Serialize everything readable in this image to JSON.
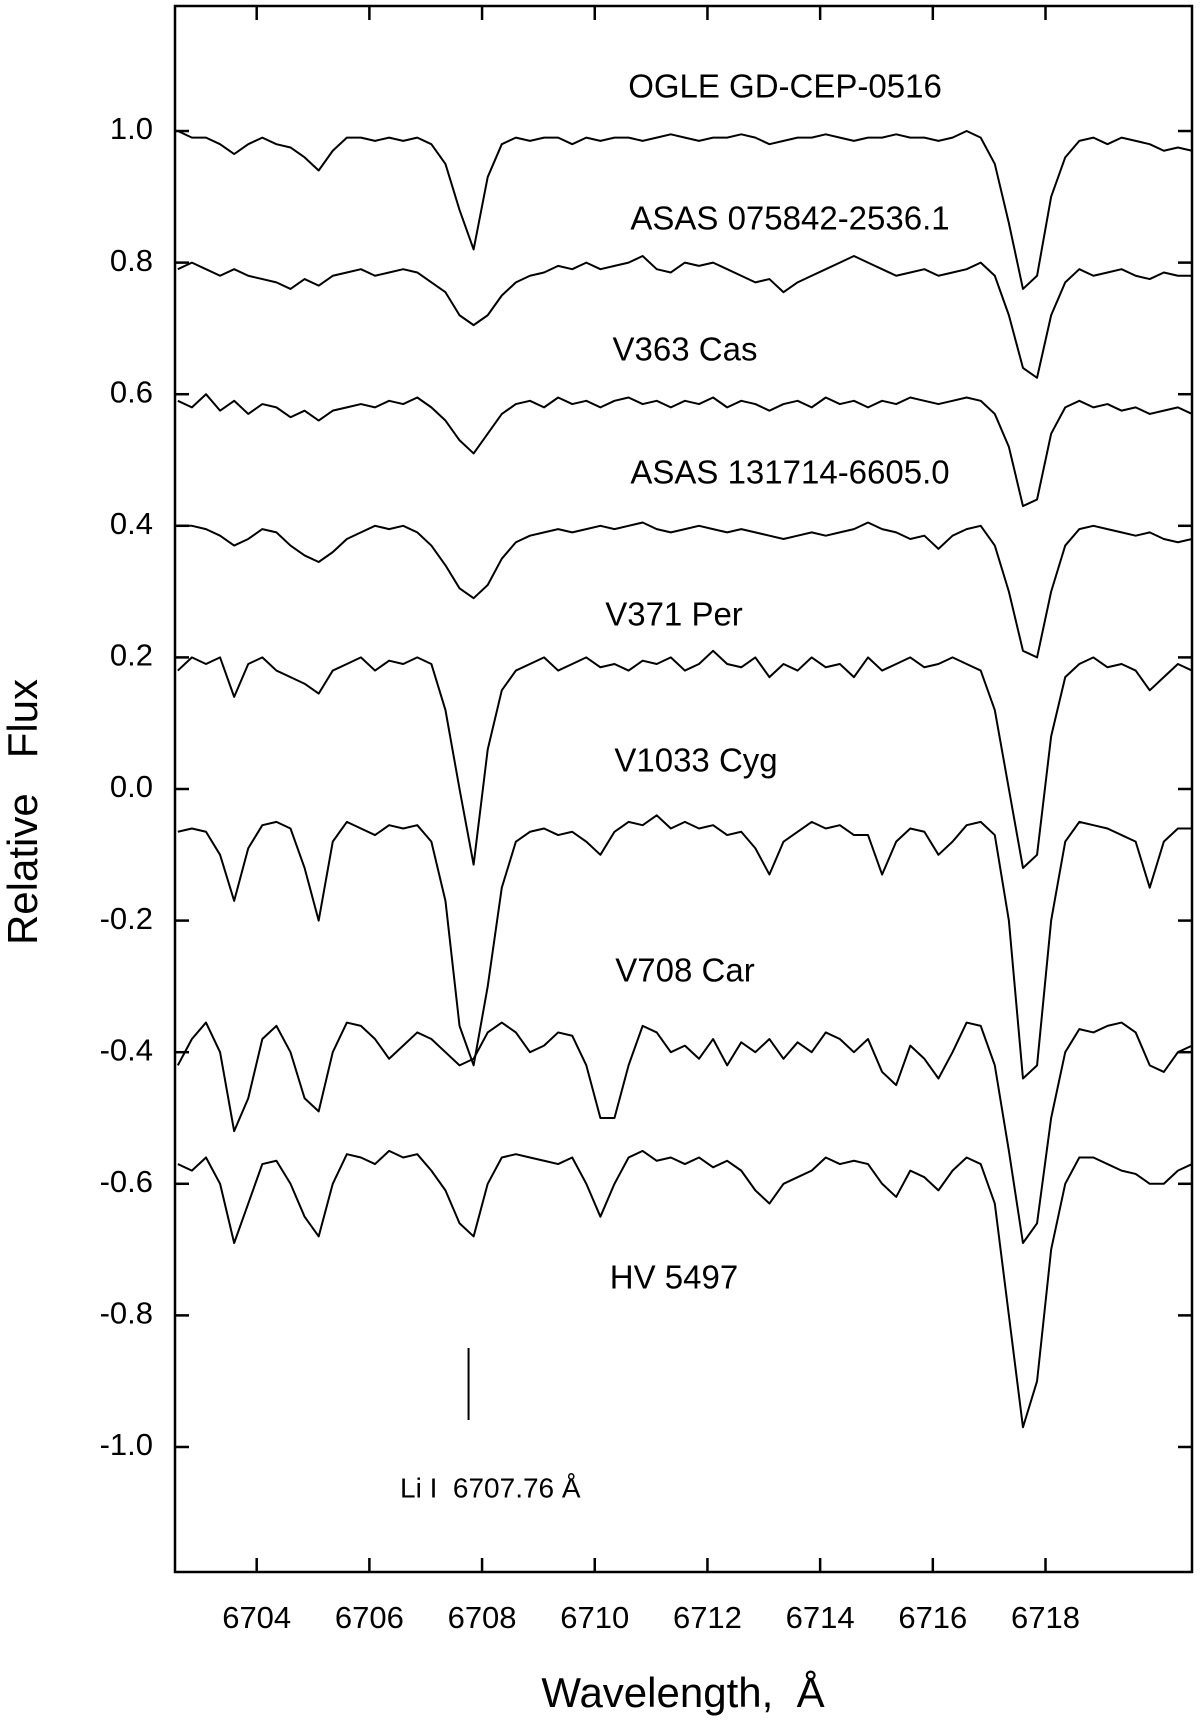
{
  "chart_data": {
    "type": "line",
    "xlabel": "Wavelength,  Å",
    "ylabel": "Relative   Flux",
    "xlim": [
      6702.55,
      6720.6
    ],
    "ylim": [
      -1.19,
      1.19
    ],
    "xticks": [
      6704,
      6706,
      6708,
      6710,
      6712,
      6714,
      6716,
      6718
    ],
    "yticks": [
      {
        "value": 1,
        "label": "1.0"
      },
      0.8,
      0.6,
      0.4,
      0.2,
      {
        "value": 0,
        "label": "0.0"
      },
      -0.2,
      -0.4,
      -0.6,
      -0.8,
      {
        "value": -1,
        "label": "-1.0"
      }
    ],
    "annotation": {
      "text": "Li I  6707.76 Å",
      "x": 6707.76
    },
    "x": [
      6702.6,
      6702.85,
      6703.1,
      6703.35,
      6703.6,
      6703.85,
      6704.1,
      6704.35,
      6704.6,
      6704.85,
      6705.1,
      6705.35,
      6705.6,
      6705.85,
      6706.1,
      6706.35,
      6706.6,
      6706.85,
      6707.1,
      6707.35,
      6707.6,
      6707.85,
      6708.1,
      6708.35,
      6708.6,
      6708.85,
      6709.1,
      6709.35,
      6709.6,
      6709.85,
      6710.1,
      6710.35,
      6710.6,
      6710.85,
      6711.1,
      6711.35,
      6711.6,
      6711.85,
      6712.1,
      6712.35,
      6712.6,
      6712.85,
      6713.1,
      6713.35,
      6713.6,
      6713.85,
      6714.1,
      6714.35,
      6714.6,
      6714.85,
      6715.1,
      6715.35,
      6715.6,
      6715.85,
      6716.1,
      6716.35,
      6716.6,
      6716.85,
      6717.1,
      6717.35,
      6717.6,
      6717.85,
      6718.1,
      6718.35,
      6718.6,
      6718.85,
      6719.1,
      6719.35,
      6719.6,
      6719.85,
      6720.1,
      6720.35,
      6720.6
    ],
    "series": [
      {
        "name": "OGLE GD-CEP-0516",
        "color": "#000000",
        "values": [
          1.0,
          0.99,
          0.99,
          0.98,
          0.965,
          0.98,
          0.99,
          0.98,
          0.975,
          0.96,
          0.94,
          0.97,
          0.99,
          0.99,
          0.985,
          0.99,
          0.985,
          0.99,
          0.98,
          0.95,
          0.88,
          0.82,
          0.93,
          0.98,
          0.99,
          0.985,
          0.99,
          0.99,
          0.98,
          0.99,
          0.985,
          0.99,
          0.99,
          0.985,
          0.99,
          0.995,
          0.99,
          0.985,
          0.99,
          0.99,
          0.995,
          0.99,
          0.98,
          0.985,
          0.99,
          0.99,
          0.995,
          0.99,
          0.985,
          0.99,
          0.99,
          0.995,
          0.99,
          0.99,
          0.985,
          0.99,
          1.0,
          0.99,
          0.95,
          0.86,
          0.76,
          0.78,
          0.9,
          0.96,
          0.985,
          0.99,
          0.98,
          0.99,
          0.985,
          0.98,
          0.97,
          0.975,
          0.97
        ]
      },
      {
        "name": "ASAS 075842-2536.1",
        "color": "#000000",
        "values": [
          0.79,
          0.8,
          0.79,
          0.78,
          0.79,
          0.78,
          0.775,
          0.77,
          0.76,
          0.775,
          0.765,
          0.78,
          0.785,
          0.79,
          0.78,
          0.785,
          0.79,
          0.785,
          0.77,
          0.755,
          0.72,
          0.705,
          0.72,
          0.75,
          0.77,
          0.78,
          0.785,
          0.795,
          0.79,
          0.8,
          0.79,
          0.795,
          0.8,
          0.81,
          0.79,
          0.785,
          0.8,
          0.795,
          0.8,
          0.79,
          0.78,
          0.77,
          0.775,
          0.755,
          0.77,
          0.78,
          0.79,
          0.8,
          0.81,
          0.8,
          0.79,
          0.78,
          0.785,
          0.79,
          0.78,
          0.785,
          0.79,
          0.8,
          0.78,
          0.72,
          0.64,
          0.625,
          0.72,
          0.77,
          0.79,
          0.78,
          0.785,
          0.79,
          0.78,
          0.775,
          0.785,
          0.78,
          0.78
        ]
      },
      {
        "name": "V363 Cas",
        "color": "#000000",
        "values": [
          0.59,
          0.58,
          0.6,
          0.575,
          0.59,
          0.57,
          0.585,
          0.58,
          0.565,
          0.575,
          0.56,
          0.575,
          0.58,
          0.585,
          0.58,
          0.59,
          0.585,
          0.595,
          0.58,
          0.56,
          0.53,
          0.51,
          0.54,
          0.57,
          0.585,
          0.59,
          0.58,
          0.595,
          0.585,
          0.59,
          0.58,
          0.59,
          0.595,
          0.585,
          0.59,
          0.58,
          0.59,
          0.585,
          0.595,
          0.58,
          0.59,
          0.585,
          0.575,
          0.585,
          0.59,
          0.58,
          0.595,
          0.585,
          0.59,
          0.58,
          0.59,
          0.585,
          0.595,
          0.59,
          0.585,
          0.59,
          0.595,
          0.59,
          0.57,
          0.52,
          0.43,
          0.44,
          0.54,
          0.58,
          0.59,
          0.58,
          0.585,
          0.575,
          0.58,
          0.57,
          0.575,
          0.58,
          0.57
        ]
      },
      {
        "name": "ASAS 131714-6605.0",
        "color": "#000000",
        "values": [
          0.4,
          0.4,
          0.395,
          0.385,
          0.37,
          0.38,
          0.395,
          0.39,
          0.37,
          0.355,
          0.345,
          0.36,
          0.38,
          0.39,
          0.4,
          0.395,
          0.4,
          0.39,
          0.37,
          0.34,
          0.305,
          0.29,
          0.31,
          0.35,
          0.375,
          0.385,
          0.39,
          0.395,
          0.39,
          0.395,
          0.4,
          0.395,
          0.4,
          0.405,
          0.395,
          0.39,
          0.395,
          0.4,
          0.395,
          0.39,
          0.395,
          0.39,
          0.385,
          0.38,
          0.385,
          0.39,
          0.385,
          0.39,
          0.395,
          0.405,
          0.395,
          0.39,
          0.38,
          0.385,
          0.365,
          0.385,
          0.395,
          0.4,
          0.37,
          0.3,
          0.21,
          0.2,
          0.3,
          0.37,
          0.395,
          0.4,
          0.395,
          0.39,
          0.385,
          0.39,
          0.38,
          0.375,
          0.38
        ]
      },
      {
        "name": "V371 Per",
        "color": "#000000",
        "values": [
          0.18,
          0.2,
          0.19,
          0.2,
          0.14,
          0.19,
          0.2,
          0.18,
          0.17,
          0.16,
          0.145,
          0.18,
          0.19,
          0.2,
          0.18,
          0.195,
          0.19,
          0.2,
          0.19,
          0.12,
          0.0,
          -0.115,
          0.06,
          0.15,
          0.18,
          0.19,
          0.2,
          0.18,
          0.19,
          0.2,
          0.185,
          0.19,
          0.18,
          0.195,
          0.19,
          0.2,
          0.18,
          0.19,
          0.21,
          0.19,
          0.185,
          0.2,
          0.17,
          0.19,
          0.18,
          0.2,
          0.185,
          0.19,
          0.17,
          0.2,
          0.18,
          0.19,
          0.2,
          0.185,
          0.19,
          0.2,
          0.19,
          0.18,
          0.12,
          0.0,
          -0.12,
          -0.1,
          0.08,
          0.17,
          0.19,
          0.2,
          0.185,
          0.19,
          0.18,
          0.15,
          0.17,
          0.19,
          0.18
        ]
      },
      {
        "name": "V1033 Cyg",
        "color": "#000000",
        "values": [
          -0.065,
          -0.06,
          -0.065,
          -0.1,
          -0.17,
          -0.09,
          -0.055,
          -0.05,
          -0.06,
          -0.12,
          -0.2,
          -0.08,
          -0.05,
          -0.06,
          -0.07,
          -0.055,
          -0.06,
          -0.055,
          -0.08,
          -0.17,
          -0.36,
          -0.42,
          -0.3,
          -0.15,
          -0.08,
          -0.065,
          -0.06,
          -0.07,
          -0.065,
          -0.08,
          -0.1,
          -0.065,
          -0.05,
          -0.055,
          -0.04,
          -0.06,
          -0.05,
          -0.06,
          -0.055,
          -0.07,
          -0.065,
          -0.09,
          -0.13,
          -0.08,
          -0.065,
          -0.05,
          -0.06,
          -0.055,
          -0.07,
          -0.07,
          -0.13,
          -0.08,
          -0.06,
          -0.065,
          -0.1,
          -0.08,
          -0.055,
          -0.05,
          -0.07,
          -0.2,
          -0.44,
          -0.42,
          -0.2,
          -0.08,
          -0.05,
          -0.055,
          -0.06,
          -0.07,
          -0.08,
          -0.15,
          -0.08,
          -0.06,
          -0.06
        ]
      },
      {
        "name": "V708 Car",
        "color": "#000000",
        "values": [
          -0.42,
          -0.38,
          -0.355,
          -0.4,
          -0.52,
          -0.47,
          -0.38,
          -0.36,
          -0.4,
          -0.47,
          -0.49,
          -0.4,
          -0.355,
          -0.36,
          -0.38,
          -0.41,
          -0.39,
          -0.37,
          -0.38,
          -0.4,
          -0.42,
          -0.41,
          -0.37,
          -0.355,
          -0.37,
          -0.4,
          -0.39,
          -0.37,
          -0.375,
          -0.42,
          -0.5,
          -0.5,
          -0.42,
          -0.36,
          -0.37,
          -0.4,
          -0.39,
          -0.41,
          -0.38,
          -0.42,
          -0.385,
          -0.4,
          -0.38,
          -0.41,
          -0.385,
          -0.4,
          -0.37,
          -0.38,
          -0.4,
          -0.38,
          -0.43,
          -0.45,
          -0.39,
          -0.41,
          -0.44,
          -0.4,
          -0.355,
          -0.36,
          -0.42,
          -0.55,
          -0.69,
          -0.66,
          -0.5,
          -0.4,
          -0.365,
          -0.37,
          -0.36,
          -0.355,
          -0.37,
          -0.42,
          -0.43,
          -0.4,
          -0.39
        ]
      },
      {
        "name": "HV 5497",
        "color": "#000000",
        "values": [
          -0.57,
          -0.58,
          -0.56,
          -0.6,
          -0.69,
          -0.63,
          -0.57,
          -0.565,
          -0.6,
          -0.65,
          -0.68,
          -0.6,
          -0.555,
          -0.56,
          -0.57,
          -0.55,
          -0.56,
          -0.555,
          -0.58,
          -0.61,
          -0.66,
          -0.68,
          -0.6,
          -0.56,
          -0.555,
          -0.56,
          -0.565,
          -0.57,
          -0.56,
          -0.6,
          -0.65,
          -0.6,
          -0.56,
          -0.55,
          -0.565,
          -0.56,
          -0.57,
          -0.56,
          -0.575,
          -0.565,
          -0.58,
          -0.61,
          -0.63,
          -0.6,
          -0.59,
          -0.58,
          -0.56,
          -0.57,
          -0.565,
          -0.57,
          -0.6,
          -0.62,
          -0.58,
          -0.59,
          -0.61,
          -0.58,
          -0.56,
          -0.57,
          -0.63,
          -0.8,
          -0.97,
          -0.9,
          -0.7,
          -0.6,
          -0.56,
          -0.56,
          -0.57,
          -0.58,
          -0.585,
          -0.6,
          -0.6,
          -0.58,
          -0.57
        ]
      }
    ]
  }
}
